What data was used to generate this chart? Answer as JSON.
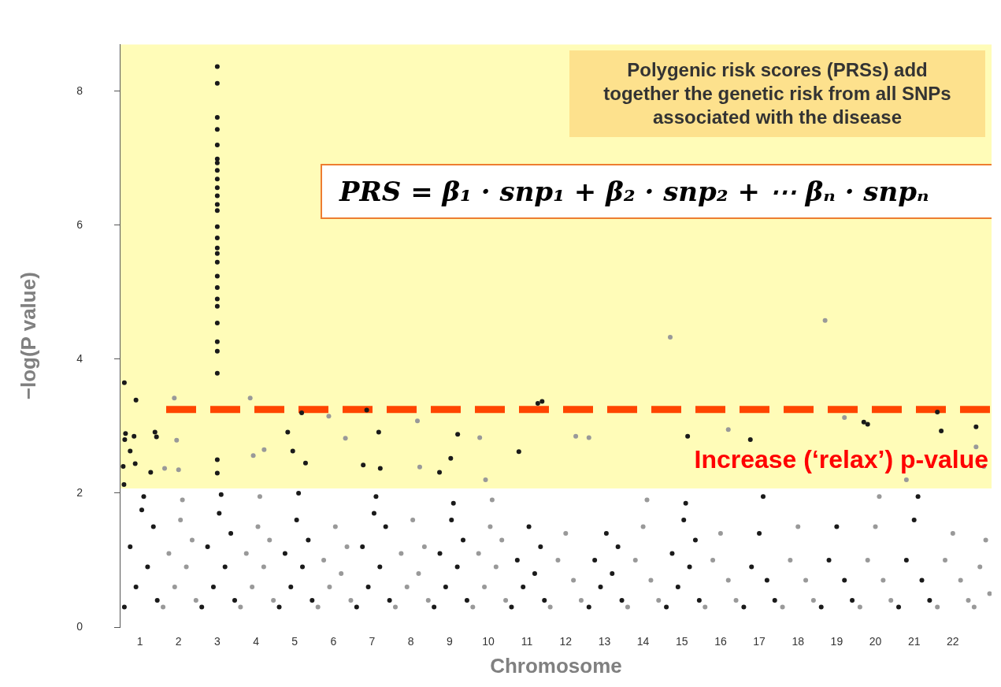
{
  "chart_data": {
    "type": "scatter",
    "xlabel": "Chromosome",
    "ylabel": "−log(P value)",
    "xlim": [
      0.5,
      23
    ],
    "ylim": [
      0,
      8.7
    ],
    "xticks": [
      1,
      2,
      3,
      4,
      5,
      6,
      7,
      8,
      9,
      10,
      11,
      12,
      13,
      14,
      15,
      16,
      17,
      18,
      19,
      20,
      21,
      22
    ],
    "yticks": [
      0,
      2,
      4,
      6,
      8
    ],
    "grid": false,
    "legend": false,
    "marker": "circle",
    "series": [
      {
        "color": "#1a1a1a",
        "x": [
          0.6,
          0.75,
          0.9,
          1.05,
          1.2,
          1.35,
          1.45,
          1.1,
          2.6,
          2.75,
          2.9,
          3.05,
          3.2,
          3.35,
          3.45,
          3.1,
          4.6,
          4.75,
          4.9,
          5.05,
          5.2,
          5.35,
          5.45,
          5.1,
          6.6,
          6.75,
          6.9,
          7.05,
          7.2,
          7.35,
          7.45,
          7.1,
          8.6,
          8.75,
          8.9,
          9.05,
          9.2,
          9.35,
          9.45,
          9.1,
          10.6,
          10.75,
          10.9,
          11.05,
          11.2,
          11.35,
          11.45,
          12.6,
          12.75,
          12.9,
          13.05,
          13.2,
          13.35,
          13.45,
          14.6,
          14.75,
          14.9,
          15.05,
          15.2,
          15.35,
          15.45,
          15.1,
          16.6,
          16.8,
          17.0,
          17.2,
          17.4,
          17.1,
          18.6,
          18.8,
          19.0,
          19.2,
          19.4,
          20.6,
          20.8,
          21.0,
          21.2,
          21.4,
          21.1,
          3,
          3,
          3,
          3,
          3,
          3,
          3,
          3,
          3,
          3,
          3,
          3,
          3,
          3,
          3,
          3,
          3,
          3,
          3,
          3,
          3,
          3,
          3,
          3,
          3,
          3,
          3,
          3,
          0.6,
          0.63,
          0.61,
          0.57,
          0.59,
          0.9,
          0.85,
          0.75,
          0.88,
          1.39,
          1.43,
          1.28,
          4.82,
          5.18,
          4.95,
          5.28,
          7.17,
          6.86,
          6.77,
          7.21,
          9.21,
          9.03,
          8.74,
          11.28,
          11.39,
          10.79,
          15.15,
          16.77,
          21.6,
          21.7,
          22.6,
          19.7,
          19.8
        ],
        "values": [
          0.3,
          1.2,
          0.6,
          1.75,
          0.9,
          1.5,
          0.4,
          1.95,
          0.3,
          1.2,
          0.6,
          1.7,
          0.9,
          1.4,
          0.4,
          1.98,
          0.3,
          1.1,
          0.6,
          1.6,
          0.9,
          1.3,
          0.4,
          2.0,
          0.3,
          1.2,
          0.6,
          1.7,
          0.9,
          1.5,
          0.4,
          1.95,
          0.3,
          1.1,
          0.6,
          1.6,
          0.9,
          1.3,
          0.4,
          1.85,
          0.3,
          1.0,
          0.6,
          1.5,
          0.8,
          1.2,
          0.4,
          0.3,
          1.0,
          0.6,
          1.4,
          0.8,
          1.2,
          0.4,
          0.3,
          1.1,
          0.6,
          1.6,
          0.9,
          1.3,
          0.4,
          1.85,
          0.3,
          0.9,
          1.4,
          0.7,
          0.4,
          1.95,
          0.3,
          1.0,
          1.5,
          0.7,
          0.4,
          0.3,
          1.0,
          1.6,
          0.7,
          0.4,
          1.95,
          8.37,
          8.12,
          7.61,
          7.43,
          7.2,
          6.99,
          6.93,
          6.82,
          6.69,
          6.56,
          6.44,
          6.31,
          6.22,
          5.98,
          5.81,
          5.66,
          5.58,
          5.45,
          5.24,
          5.07,
          4.9,
          4.79,
          4.54,
          4.26,
          4.12,
          3.79,
          2.5,
          2.3,
          3.65,
          2.89,
          2.8,
          2.4,
          2.13,
          3.39,
          2.85,
          2.63,
          2.44,
          2.91,
          2.84,
          2.31,
          2.91,
          3.2,
          2.63,
          2.45,
          2.91,
          3.24,
          2.42,
          2.37,
          2.88,
          2.52,
          2.31,
          3.34,
          3.37,
          2.62,
          2.85,
          2.8,
          3.21,
          2.93,
          2.99,
          3.06,
          3.03
        ]
      },
      {
        "color": "#999999",
        "x": [
          1.6,
          1.75,
          1.9,
          2.05,
          2.2,
          2.35,
          2.45,
          2.1,
          3.6,
          3.75,
          3.9,
          4.05,
          4.2,
          4.35,
          4.45,
          4.1,
          5.6,
          5.75,
          5.9,
          6.05,
          6.2,
          6.35,
          6.45,
          7.6,
          7.75,
          7.9,
          8.05,
          8.2,
          8.35,
          8.45,
          9.6,
          9.75,
          9.9,
          10.05,
          10.2,
          10.35,
          10.45,
          10.1,
          11.6,
          11.8,
          12.0,
          12.2,
          12.4,
          13.6,
          13.8,
          14.0,
          14.2,
          14.4,
          14.1,
          15.6,
          15.8,
          16.0,
          16.2,
          16.4,
          17.6,
          17.8,
          18.0,
          18.2,
          18.4,
          19.6,
          19.8,
          20.0,
          20.2,
          20.4,
          20.1,
          21.6,
          21.8,
          22.0,
          22.2,
          22.4,
          22.55,
          22.7,
          22.85,
          22.95,
          1.89,
          1.95,
          1.64,
          2.0,
          3.85,
          3.93,
          4.21,
          5.88,
          6.31,
          8.17,
          8.23,
          9.78,
          9.93,
          12.26,
          12.6,
          14.7,
          18.7,
          16.2,
          19.2,
          22.6,
          22.8,
          20.8
        ],
        "values": [
          0.3,
          1.1,
          0.6,
          1.6,
          0.9,
          1.3,
          0.4,
          1.9,
          0.3,
          1.1,
          0.6,
          1.5,
          0.9,
          1.3,
          0.4,
          1.95,
          0.3,
          1.0,
          0.6,
          1.5,
          0.8,
          1.2,
          0.4,
          0.3,
          1.1,
          0.6,
          1.6,
          0.8,
          1.2,
          0.4,
          0.3,
          1.1,
          0.6,
          1.5,
          0.9,
          1.3,
          0.4,
          1.9,
          0.3,
          1.0,
          1.4,
          0.7,
          0.4,
          0.3,
          1.0,
          1.5,
          0.7,
          0.4,
          1.9,
          0.3,
          1.0,
          1.4,
          0.7,
          0.4,
          0.3,
          1.0,
          1.5,
          0.7,
          0.4,
          0.3,
          1.0,
          1.5,
          0.7,
          0.4,
          1.95,
          0.3,
          1.0,
          1.4,
          0.7,
          0.4,
          0.3,
          0.9,
          1.3,
          0.5,
          3.42,
          2.79,
          2.37,
          2.35,
          3.42,
          2.56,
          2.65,
          3.15,
          2.82,
          3.08,
          2.39,
          2.83,
          2.2,
          2.85,
          2.83,
          4.33,
          4.58,
          2.95,
          3.13,
          2.69,
          2.4,
          2.2
        ]
      }
    ],
    "bands": [
      {
        "axis": "y",
        "from": 2.07,
        "to": 8.7,
        "color": "#fffcb8"
      }
    ],
    "ref_lines": [
      {
        "axis": "y",
        "value": 3.25,
        "color": "#ff4500",
        "line_style": "dashed"
      }
    ],
    "annotations": [
      "Polygenic risk scores (PRSs) add together the genetic risk from all SNPs associated with the disease",
      "PRS = β₁ · snp₁ + β₂ · snp₂ + ⋯ βₙ · snpₙ",
      "Increase (‘relax’) p-value"
    ]
  }
}
